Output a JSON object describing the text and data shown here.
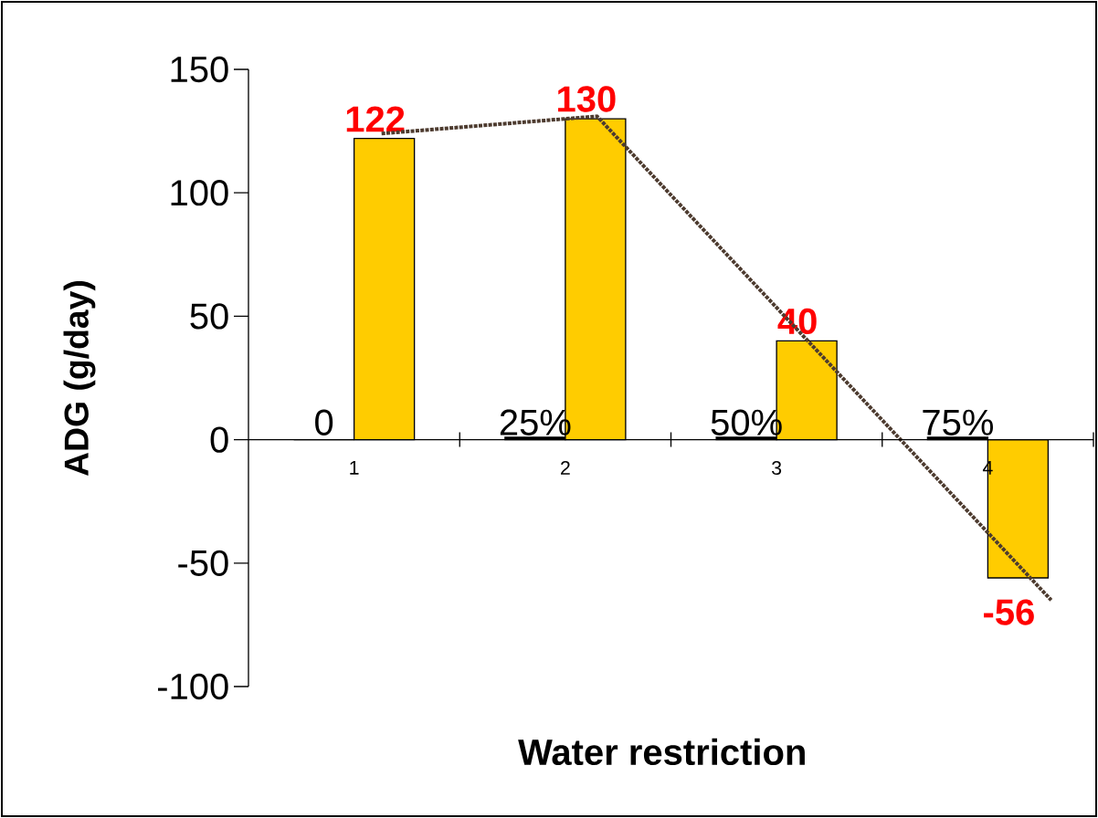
{
  "chart_data": {
    "type": "bar",
    "xlabel": "Water restriction",
    "ylabel": "ADG (g/day)",
    "x": [
      1,
      2,
      3,
      4
    ],
    "xlim": [
      0.5,
      4.5
    ],
    "xticks": [
      1,
      2,
      3,
      4
    ],
    "ylim": [
      -100,
      150
    ],
    "yticks": [
      -100,
      -50,
      0,
      50,
      100,
      150
    ],
    "series": [
      {
        "color": "#000000",
        "values": [
          0,
          1,
          1,
          1
        ]
      },
      {
        "color": "#ffcc00",
        "values": [
          122,
          130,
          40,
          -56
        ],
        "data_labels": true
      },
      {
        "type": "line",
        "x": [
          1.13,
          2.15,
          4.3
        ],
        "values": [
          124,
          131,
          -65
        ],
        "color": "#4d3b2f",
        "line_style": "dotted"
      }
    ],
    "annotations": [
      "0",
      "25%",
      "50%",
      "75%"
    ]
  }
}
